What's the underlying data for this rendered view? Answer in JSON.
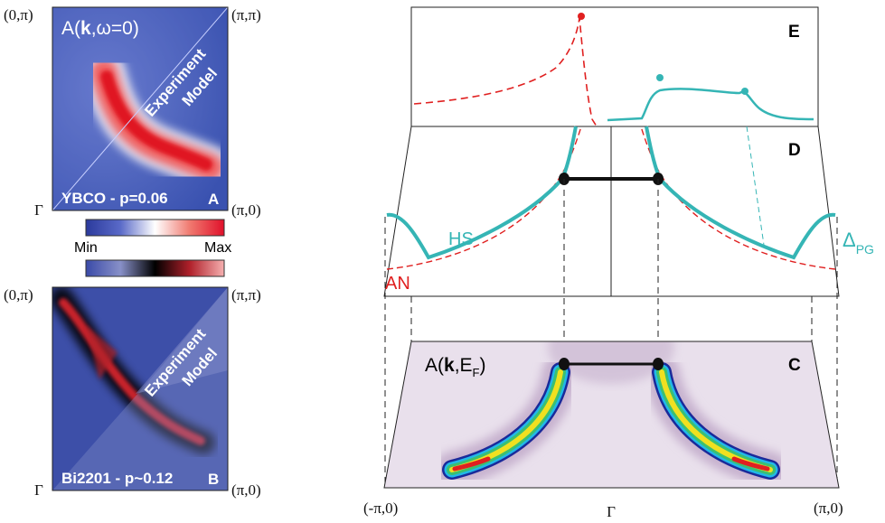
{
  "panel_a": {
    "corners": [
      "(0,π)",
      "(π,π)",
      "Γ",
      "(π,0)"
    ],
    "title": {
      "prefix": "A(",
      "bold": "k",
      "suffix": ",ω=0)"
    },
    "experiment": "Experiment",
    "model": "Model",
    "sample": "YBCO - p=0.06",
    "letter": "A"
  },
  "colorbar": {
    "min": "Min",
    "max": "Max"
  },
  "panel_b": {
    "corners": [
      "(0,π)",
      "(π,π)",
      "Γ",
      "(π,0)"
    ],
    "experiment": "Experiment",
    "model": "Model",
    "sample": "Bi2201 - p~0.12",
    "letter": "B"
  },
  "panel_e": {
    "letter": "E"
  },
  "panel_d": {
    "letter": "D",
    "hs": "HS",
    "an": "AN",
    "gap": {
      "symbol": "Δ",
      "sub": "PG"
    }
  },
  "panel_c": {
    "letter": "C",
    "title": {
      "prefix": "A(",
      "bold": "k",
      "mid": ",E",
      "sub": "F",
      "suffix": ")"
    }
  },
  "axis": {
    "left": "(-π,0)",
    "center": "Γ",
    "right": "(π,0)"
  }
}
